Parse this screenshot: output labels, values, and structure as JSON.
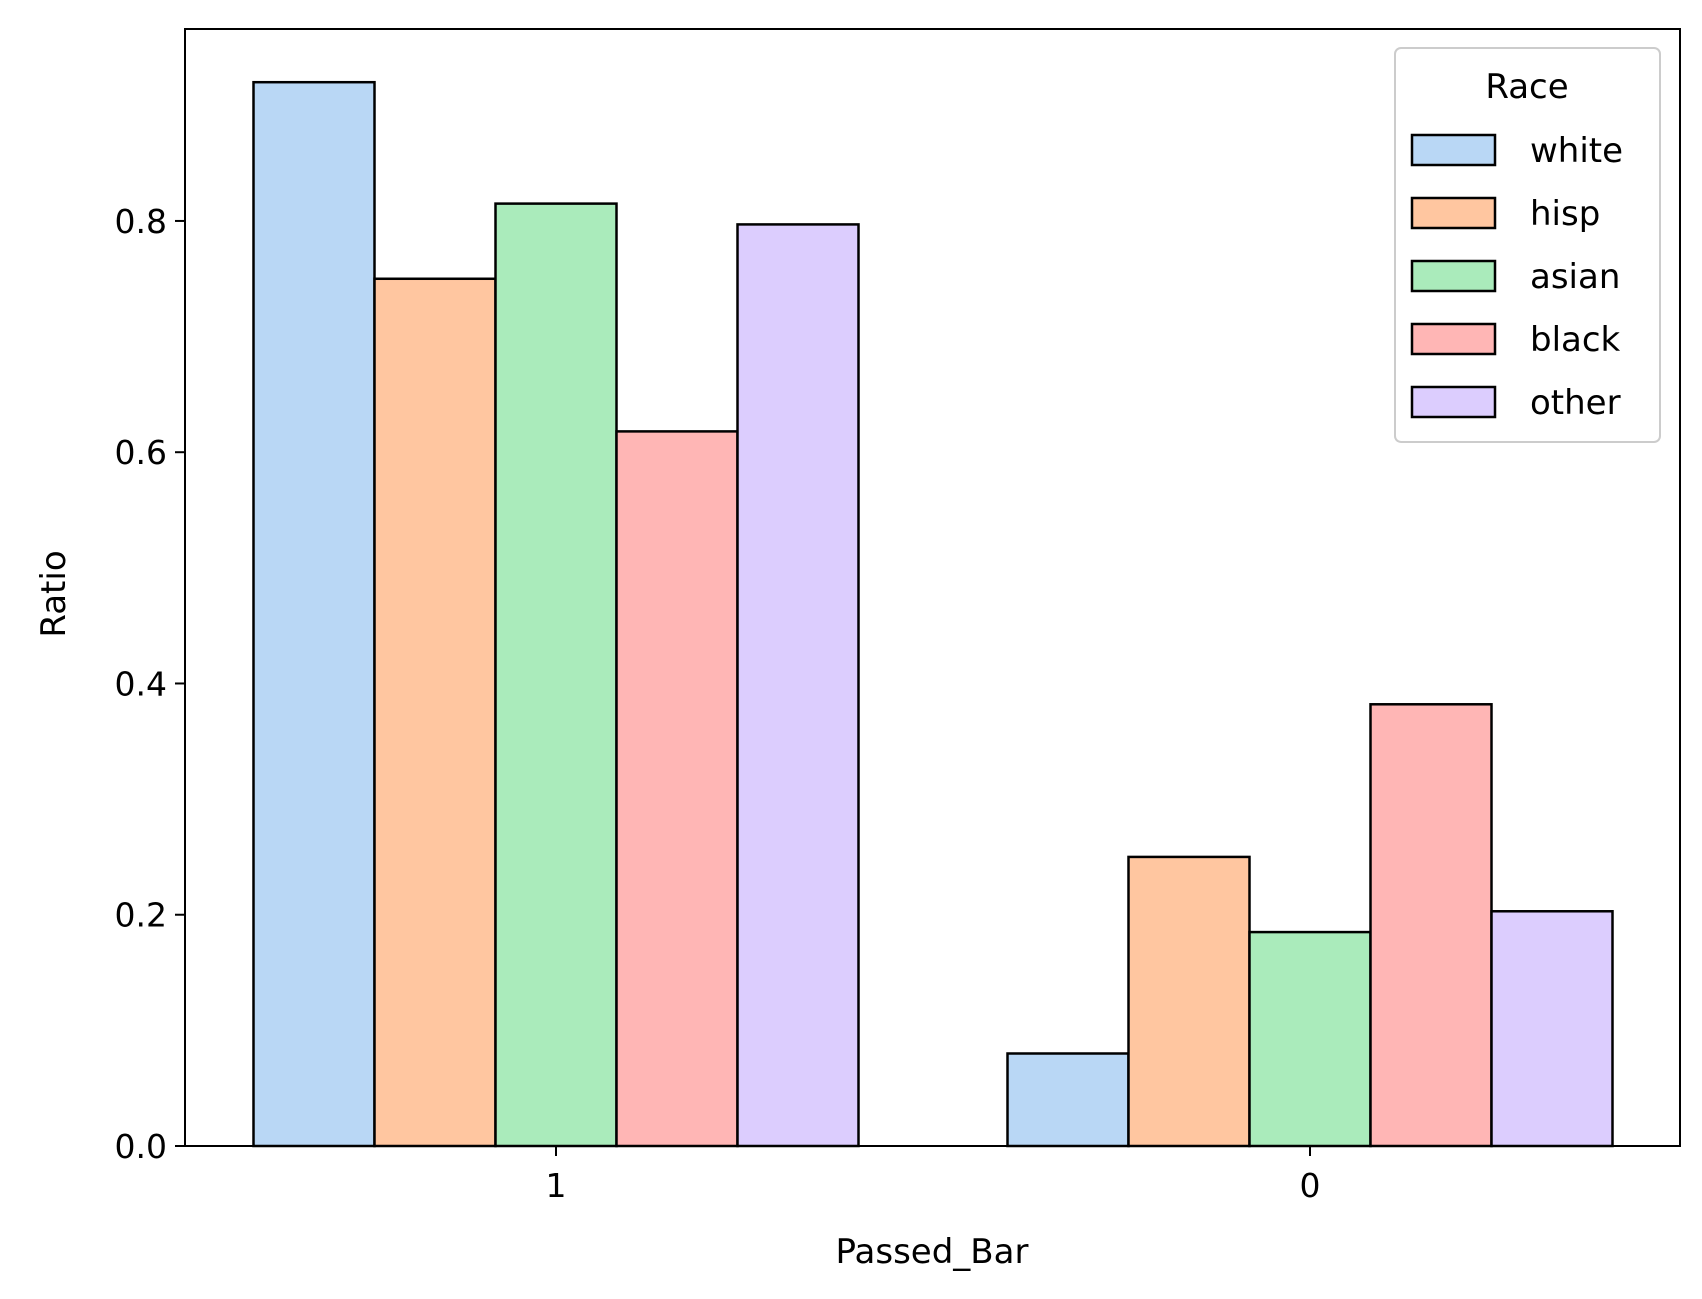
{
  "chart_data": {
    "type": "bar",
    "categories": [
      "1",
      "0"
    ],
    "series": [
      {
        "name": "white",
        "values": [
          0.92,
          0.08
        ],
        "color": "#b9d7f5"
      },
      {
        "name": "hisp",
        "values": [
          0.75,
          0.25
        ],
        "color": "#ffc6a0"
      },
      {
        "name": "asian",
        "values": [
          0.815,
          0.185
        ],
        "color": "#aaebbb"
      },
      {
        "name": "black",
        "values": [
          0.618,
          0.382
        ],
        "color": "#ffb6b5"
      },
      {
        "name": "other",
        "values": [
          0.797,
          0.203
        ],
        "color": "#dccdfe"
      }
    ],
    "xlabel": "Passed_Bar",
    "ylabel": "Ratio",
    "ylim": [
      0,
      0.966
    ],
    "yticks": [
      "0.0",
      "0.2",
      "0.4",
      "0.6",
      "0.8"
    ],
    "grid": false,
    "legend": {
      "title": "Race",
      "placement": "top-right"
    }
  }
}
